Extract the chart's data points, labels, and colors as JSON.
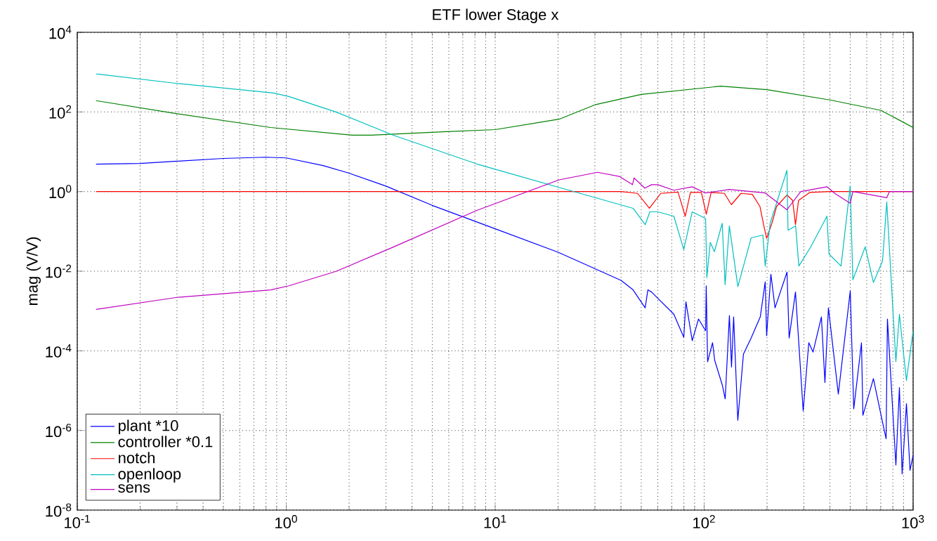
{
  "chart_data": {
    "type": "line",
    "title": "ETF lower Stage x",
    "ylabel": "mag (V/V)",
    "log": "xy",
    "grid": true,
    "legend": "bottom left",
    "marker": "none",
    "line_style": "solid",
    "xlim": [
      0.1,
      1000
    ],
    "ylim": [
      1e-08,
      10000
    ],
    "xticks": [
      {
        "value": 0.1,
        "label": "10$^{-1}$"
      },
      {
        "value": 1,
        "label": "10$^{0}$"
      },
      {
        "value": 10,
        "label": "10$^{1}$"
      },
      {
        "value": 100,
        "label": "10$^{2}$"
      },
      {
        "value": 1000,
        "label": "10$^{3}$"
      }
    ],
    "yticks": [
      {
        "value": 1e-08,
        "label": "10$^{-8}$"
      },
      {
        "value": 1e-06,
        "label": "10$^{-6}$"
      },
      {
        "value": 0.0001,
        "label": "10$^{-4}$"
      },
      {
        "value": 0.01,
        "label": "10$^{-2}$"
      },
      {
        "value": 1,
        "label": "10$^{0}$"
      },
      {
        "value": 100,
        "label": "10$^{2}$"
      },
      {
        "value": 10000,
        "label": "10$^{4}$"
      }
    ],
    "series": [
      {
        "name": "plant *10",
        "color": "#0000ff",
        "x": [
          0.123,
          0.2,
          0.5,
          0.8,
          1,
          1.5,
          2,
          3,
          5,
          10,
          20,
          40,
          45.7,
          52.2,
          53.8,
          56,
          71.6,
          79.9,
          81.8,
          87.7,
          94,
          101.6,
          102.3,
          103.9,
          109.7,
          112.3,
          122.2,
          126.1,
          132.1,
          135.2,
          138.4,
          144.9,
          154.2,
          167.9,
          185.6,
          196,
          199.1,
          208.6,
          218.4,
          249.2,
          255.1,
          273.6,
          297.8,
          316.8,
          331.9,
          364,
          378.5,
          393.3,
          438.6,
          500.3,
          519.9,
          566.2,
          575.1,
          645.8,
          714.2,
          742.6,
          753.6,
          827.3,
          859.9,
          886.2,
          929.3,
          966.4,
          1000
        ],
        "values": [
          4.9,
          5.1,
          6.8,
          7.3,
          7.0,
          4.5,
          2.9,
          1.37,
          0.45,
          0.116,
          0.03,
          0.0059,
          0.0034,
          0.0012,
          0.0034,
          0.003,
          0.00083,
          0.00022,
          0.0017,
          0.00018,
          0.00063,
          0.00032,
          0.0043,
          5.3e-05,
          0.00016,
          5.8e-05,
          1.37e-05,
          6.2e-06,
          0.00077,
          3.9e-05,
          0.00071,
          1.8e-06,
          8.3e-05,
          0.00021,
          0.00071,
          0.0054,
          0.00024,
          0.0084,
          0.0012,
          0.0095,
          0.00021,
          0.003,
          3.1e-06,
          0.00016,
          9.3e-05,
          0.00071,
          1.6e-05,
          0.0012,
          8.2e-06,
          0.0032,
          3.5e-06,
          0.00016,
          2.4e-06,
          2e-05,
          1.6e-06,
          6.2e-07,
          0.00063,
          1.35e-07,
          1.2e-05,
          8.1e-08,
          4.7e-06,
          1e-07,
          2.4e-07
        ]
      },
      {
        "name": "controller *0.1",
        "color": "#008000",
        "x": [
          0.123,
          0.3,
          0.844,
          2.07,
          2.55,
          5.83,
          10,
          20.2,
          30,
          50,
          120,
          200,
          400,
          700,
          1000
        ],
        "values": [
          192,
          90,
          40.6,
          26.2,
          26.2,
          32,
          36,
          65.6,
          151,
          275,
          444,
          363,
          200,
          110,
          40.6
        ]
      },
      {
        "name": "notch",
        "color": "#ff0000",
        "x": [
          0.123,
          40,
          48,
          54.7,
          62,
          75,
          81.2,
          86,
          97,
          102.4,
          108,
          125,
          135,
          150,
          170,
          185,
          193,
          199,
          211,
          222,
          249,
          265,
          273.6,
          283,
          320,
          400,
          1000
        ],
        "values": [
          1,
          1,
          0.9,
          0.38,
          0.9,
          0.97,
          0.24,
          0.95,
          0.95,
          0.27,
          0.95,
          0.9,
          0.47,
          0.9,
          0.85,
          0.42,
          0.14,
          0.067,
          0.16,
          0.42,
          0.82,
          0.6,
          0.148,
          0.6,
          0.95,
          1,
          1
        ]
      },
      {
        "name": "openloop",
        "color": "#00bfbf",
        "x": [
          0.123,
          0.3,
          0.87,
          1.03,
          1.73,
          3.24,
          8.2,
          20.2,
          45.7,
          52.2,
          55,
          60,
          71.6,
          79.9,
          87.7,
          101.6,
          103,
          107,
          112,
          122,
          126,
          132,
          145,
          168,
          191,
          196,
          207,
          249,
          252,
          274,
          284,
          324,
          387,
          396,
          452,
          500,
          515,
          590,
          646,
          714,
          748,
          827,
          860,
          929,
          1000
        ],
        "values": [
          908,
          520,
          298,
          244,
          100,
          26.2,
          4.9,
          1.27,
          0.38,
          0.148,
          0.31,
          0.31,
          0.24,
          0.035,
          0.31,
          0.21,
          0.0069,
          0.053,
          0.031,
          0.16,
          0.0046,
          0.137,
          0.0041,
          0.069,
          0.081,
          0.0135,
          0.16,
          3.4,
          0.107,
          0.137,
          0.0135,
          0.041,
          0.24,
          0.027,
          0.0135,
          1.37,
          0.0061,
          0.041,
          0.0052,
          0.018,
          0.55,
          5.4e-05,
          0.00083,
          1.8e-05,
          0.00032
        ]
      },
      {
        "name": "sens",
        "color": "#bf00bf",
        "x": [
          0.123,
          0.3,
          0.844,
          1.03,
          1.73,
          3.24,
          8.2,
          20.2,
          30.9,
          39.3,
          45.4,
          46.2,
          52,
          56,
          60,
          71.6,
          87.7,
          101.6,
          132,
          196,
          249,
          290,
          387,
          423,
          500,
          515,
          748,
          770,
          1000
        ],
        "values": [
          0.0011,
          0.0022,
          0.0034,
          0.0043,
          0.0099,
          0.04,
          0.34,
          1.97,
          3.05,
          2.4,
          1.49,
          2.2,
          1.22,
          1.49,
          1.49,
          1.08,
          1.32,
          0.92,
          1.13,
          0.92,
          0.35,
          1,
          1.32,
          0.89,
          0.51,
          1,
          0.7,
          1,
          1
        ]
      }
    ]
  }
}
